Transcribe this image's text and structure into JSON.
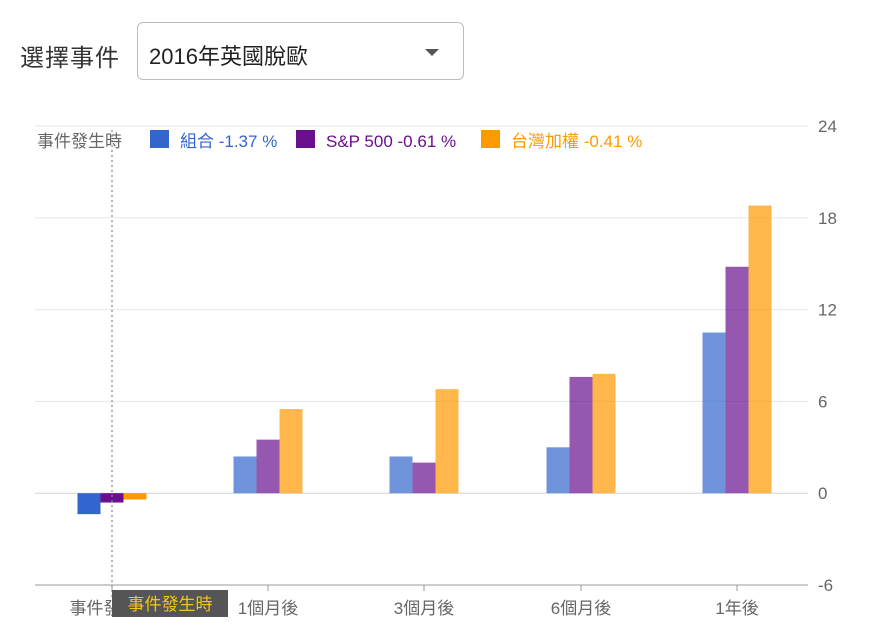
{
  "selector": {
    "label": "選擇事件",
    "value": "2016年英國脫歐",
    "icon": "chevron-down-icon"
  },
  "chart_data": {
    "type": "bar",
    "categories": [
      "事件發生時",
      "1個月後",
      "3個月後",
      "6個月後",
      "1年後"
    ],
    "series": [
      {
        "name": "組合",
        "color": "#3366cc",
        "values": [
          -1.37,
          2.4,
          2.4,
          3.0,
          10.5
        ],
        "legend_value": "-1.37 %"
      },
      {
        "name": "S&P 500",
        "color": "#6a0f8e",
        "values": [
          -0.61,
          3.5,
          2.0,
          7.6,
          14.8
        ],
        "legend_value": "-0.61 %"
      },
      {
        "name": "台灣加權",
        "color": "#ff9900",
        "values": [
          -0.41,
          5.5,
          6.8,
          7.8,
          18.8
        ],
        "legend_value": "-0.41 %"
      }
    ],
    "legend_title": "事件發生時",
    "y_ticks": [
      "24",
      "18",
      "12",
      "6",
      "0",
      "-6"
    ],
    "ylim": [
      -6,
      24
    ],
    "cursor_label": "事件發生時",
    "legend_position": "top",
    "y_axis_side": "right",
    "grid": true
  }
}
